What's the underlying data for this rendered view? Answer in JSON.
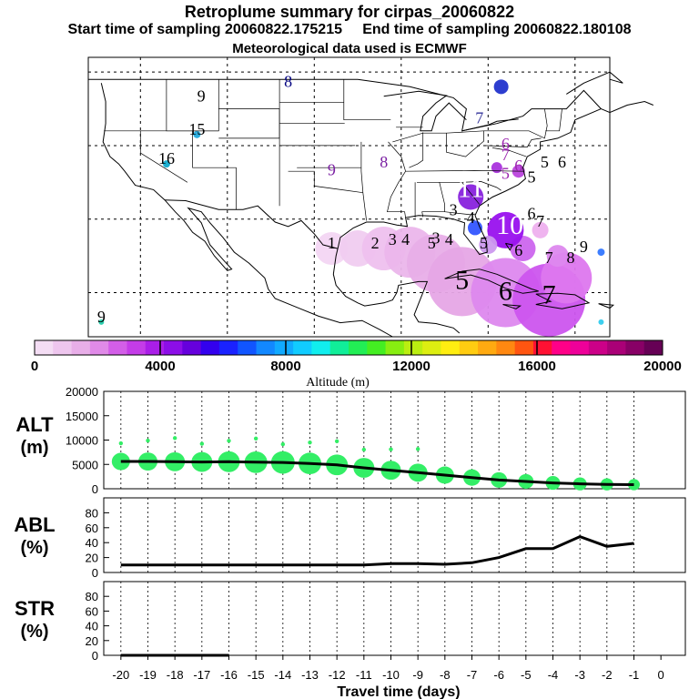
{
  "header": {
    "title": "Retroplume summary for cirpas_20060822",
    "start_label": "Start time of sampling 20060822.175215",
    "end_label": "End time of sampling 20060822.180108",
    "met_label": "Meteorological data used is ECMWF"
  },
  "map": {
    "labels": [
      {
        "text": "9",
        "lon": -113,
        "lat": 46,
        "color": "#000000"
      },
      {
        "text": "8",
        "lon": -103,
        "lat": 48,
        "color": "#000080"
      },
      {
        "text": "15",
        "lon": -113.5,
        "lat": 41.5,
        "color": "#000000"
      },
      {
        "text": "16",
        "lon": -117,
        "lat": 37.5,
        "color": "#000000"
      },
      {
        "text": "9",
        "lon": -124.5,
        "lat": 16,
        "color": "#000000"
      },
      {
        "text": "9",
        "lon": -98,
        "lat": 36,
        "color": "#7a1fa2"
      },
      {
        "text": "8",
        "lon": -92,
        "lat": 37,
        "color": "#7a1fa2"
      },
      {
        "text": "7",
        "lon": -81,
        "lat": 43,
        "color": "#333399"
      },
      {
        "text": "6",
        "lon": -78,
        "lat": 39.5,
        "color": "#9c27b0"
      },
      {
        "text": "7",
        "lon": -78,
        "lat": 38,
        "color": "#9c27b0"
      },
      {
        "text": "6",
        "lon": -76.5,
        "lat": 36.5,
        "color": "#9c27b0"
      },
      {
        "text": "5",
        "lon": -78,
        "lat": 35.5,
        "color": "#9c27b0"
      },
      {
        "text": "5",
        "lon": -73.5,
        "lat": 37,
        "color": "#000000"
      },
      {
        "text": "6",
        "lon": -71.5,
        "lat": 37,
        "color": "#000000"
      },
      {
        "text": "5",
        "lon": -75,
        "lat": 35,
        "color": "#000000"
      },
      {
        "text": "11",
        "lon": -82,
        "lat": 33,
        "color": "#ffffff"
      },
      {
        "text": "3",
        "lon": -84,
        "lat": 30.5,
        "color": "#000000"
      },
      {
        "text": "4",
        "lon": -82,
        "lat": 29.5,
        "color": "#000000"
      },
      {
        "text": "10",
        "lon": -77.5,
        "lat": 28,
        "color": "#ffffff"
      },
      {
        "text": "6",
        "lon": -75,
        "lat": 30,
        "color": "#000000"
      },
      {
        "text": "7",
        "lon": -74,
        "lat": 29,
        "color": "#000000"
      },
      {
        "text": "1",
        "lon": -98,
        "lat": 26,
        "color": "#000000"
      },
      {
        "text": "2",
        "lon": -93,
        "lat": 26,
        "color": "#000000"
      },
      {
        "text": "3",
        "lon": -91,
        "lat": 26.5,
        "color": "#000000"
      },
      {
        "text": "4",
        "lon": -89.5,
        "lat": 26.5,
        "color": "#000000"
      },
      {
        "text": "5",
        "lon": -86.5,
        "lat": 26,
        "color": "#000000"
      },
      {
        "text": "3",
        "lon": -86,
        "lat": 26.7,
        "color": "#000000"
      },
      {
        "text": "4",
        "lon": -84.5,
        "lat": 26.5,
        "color": "#000000"
      },
      {
        "text": "5",
        "lon": -80.5,
        "lat": 26,
        "color": "#000000"
      },
      {
        "text": "6",
        "lon": -76.5,
        "lat": 25,
        "color": "#000000"
      },
      {
        "text": "7",
        "lon": -73,
        "lat": 24,
        "color": "#000000"
      },
      {
        "text": "8",
        "lon": -70.5,
        "lat": 24,
        "color": "#000000"
      },
      {
        "text": "9",
        "lon": -69,
        "lat": 25.5,
        "color": "#000000"
      },
      {
        "text": "5",
        "lon": -83,
        "lat": 20.5,
        "color": "#000000"
      },
      {
        "text": "6",
        "lon": -78,
        "lat": 19,
        "color": "#000000"
      },
      {
        "text": "7",
        "lon": -73,
        "lat": 18.5,
        "color": "#000000"
      }
    ],
    "colorbar_ticks": [
      "0",
      "4000",
      "8000",
      "12000",
      "16000",
      "20000"
    ],
    "colorbar_title": "Altitude (m)"
  },
  "chart_data": [
    {
      "type": "line",
      "title": "ALT (m)",
      "ylabel_line1": "ALT",
      "ylabel_line2": "(m)",
      "xlabel": "Travel time (days)",
      "x": [
        -20,
        -19,
        -18,
        -17,
        -16,
        -15,
        -14,
        -13,
        -12,
        -11,
        -10,
        -9,
        -8,
        -7,
        -6,
        -5,
        -4,
        -3,
        -2,
        -1
      ],
      "values": [
        5600,
        5600,
        5550,
        5500,
        5550,
        5450,
        5400,
        5200,
        4900,
        4300,
        3800,
        3300,
        2800,
        2300,
        1800,
        1500,
        1200,
        1000,
        900,
        850
      ],
      "bubble_color": "#33ee66",
      "ylim": [
        0,
        20000
      ],
      "yticks": [
        0,
        5000,
        10000,
        15000,
        20000
      ]
    },
    {
      "type": "line",
      "title": "ABL (%)",
      "ylabel_line1": "ABL",
      "ylabel_line2": "(%)",
      "x": [
        -20,
        -19,
        -18,
        -17,
        -16,
        -15,
        -14,
        -13,
        -12,
        -11,
        -10,
        -9,
        -8,
        -7,
        -6,
        -5,
        -4,
        -3,
        -2,
        -1
      ],
      "values": [
        10,
        10,
        10,
        10,
        10,
        10,
        10,
        10,
        10,
        10,
        12,
        12,
        11,
        13,
        20,
        32,
        32,
        48,
        35,
        39
      ],
      "ylim": [
        0,
        100
      ],
      "yticks": [
        0,
        20,
        40,
        60,
        80
      ]
    },
    {
      "type": "line",
      "title": "STR (%)",
      "ylabel_line1": "STR",
      "ylabel_line2": "(%)",
      "x": [
        -20,
        -19,
        -18,
        -17,
        -16
      ],
      "values": [
        0,
        0,
        0,
        0,
        0
      ],
      "ylim": [
        0,
        100
      ],
      "yticks": [
        0,
        20,
        40,
        60,
        80
      ]
    }
  ],
  "xaxis": {
    "ticks": [
      "-20",
      "-19",
      "-18",
      "-17",
      "-16",
      "-15",
      "-14",
      "-13",
      "-12",
      "-11",
      "-10",
      "-9",
      "-8",
      "-7",
      "-6",
      "-5",
      "-4",
      "-3",
      "-2",
      "-1",
      "0"
    ],
    "label": "Travel time (days)"
  }
}
